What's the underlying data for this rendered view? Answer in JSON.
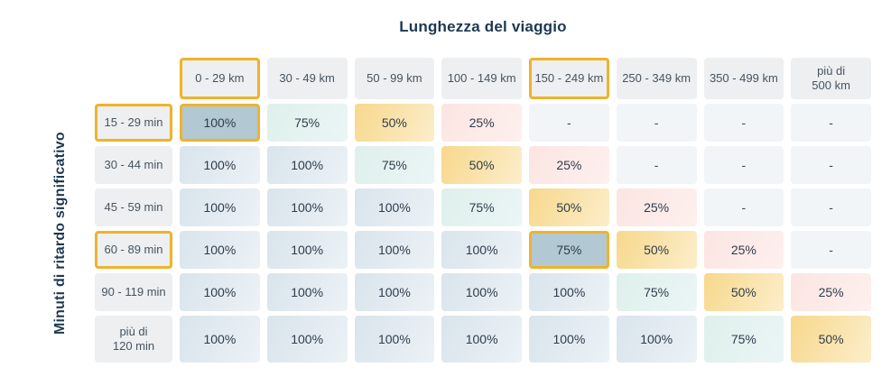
{
  "chart_data": {
    "type": "heatmap",
    "title": "Lunghezza del viaggio",
    "ylabel": "Minuti di ritardo significativo",
    "columns": [
      "0 - 29 km",
      "30 - 49 km",
      "50 - 99 km",
      "100 - 149 km",
      "150 - 249 km",
      "250 - 349 km",
      "350 - 499 km",
      "più di\n500 km"
    ],
    "rows": [
      "15 - 29 min",
      "30 - 44 min",
      "45 - 59 min",
      "60 - 89 min",
      "90 - 119 min",
      "più di\n120 min"
    ],
    "values": [
      [
        "100%",
        "75%",
        "50%",
        "25%",
        "-",
        "-",
        "-",
        "-"
      ],
      [
        "100%",
        "100%",
        "75%",
        "50%",
        "25%",
        "-",
        "-",
        "-"
      ],
      [
        "100%",
        "100%",
        "100%",
        "75%",
        "50%",
        "25%",
        "-",
        "-"
      ],
      [
        "100%",
        "100%",
        "100%",
        "100%",
        "75%",
        "50%",
        "25%",
        "-"
      ],
      [
        "100%",
        "100%",
        "100%",
        "100%",
        "100%",
        "75%",
        "50%",
        "25%"
      ],
      [
        "100%",
        "100%",
        "100%",
        "100%",
        "100%",
        "100%",
        "75%",
        "50%"
      ]
    ],
    "highlighted_columns": [
      0,
      4
    ],
    "highlighted_rows": [
      0,
      3
    ],
    "highlighted_cells": [
      [
        0,
        0
      ],
      [
        3,
        4
      ]
    ],
    "legend_position": "none",
    "grid": false
  },
  "colors": {
    "accent_border": "#EFB32A",
    "highlight_cell_bg": "#B2C8D3",
    "cell_100_bg": "#DCE6EE",
    "cell_75_bg": "#DFF0ED",
    "cell_50_bg": "#F8DC96",
    "cell_25_bg": "#FBE8E6",
    "cell_empty_bg": "#F2F5F7",
    "header_bg": "#EDEFF1",
    "title_color": "#1D3950",
    "cell_text": "#2E3C4B"
  }
}
